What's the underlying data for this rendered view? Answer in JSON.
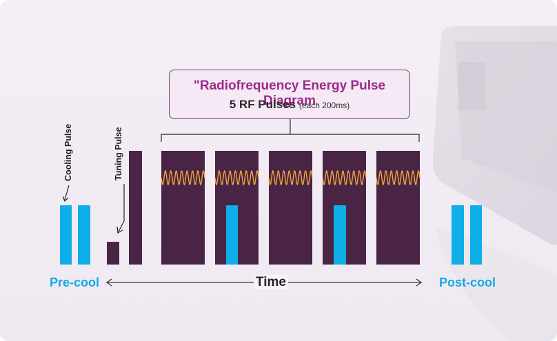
{
  "callout": {
    "title": "\"Radiofrequency Energy Pulse Diagram",
    "subtitle": "5 RF Pulses",
    "subtitle_note": "(each 200ms)"
  },
  "labels": {
    "cooling_pulse": "Cooling Pulse",
    "tuning_pulse": "Tuning Pulse",
    "pre_cool": "Pre-cool",
    "time": "Time",
    "post_cool": "Post-cool"
  },
  "rf_pulses": {
    "count": 5,
    "with_cooling_bar": [
      false,
      true,
      false,
      true,
      false
    ]
  },
  "colors": {
    "cooling": "#0eaee8",
    "rf_block": "#4a2444",
    "wave": "#f0a63a",
    "title": "#9b2b8a",
    "phase_text": "#16a9e3"
  }
}
